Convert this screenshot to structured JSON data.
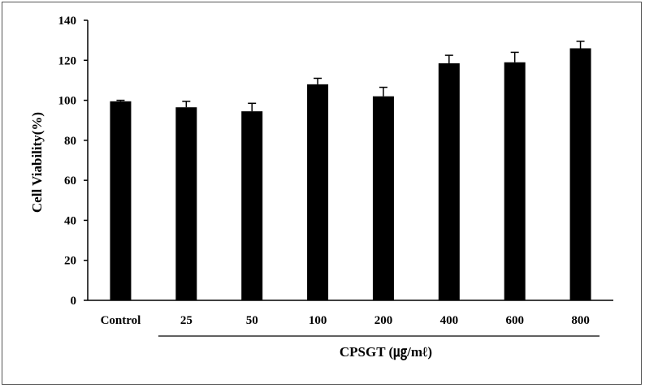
{
  "chart_data": {
    "type": "bar",
    "title": "",
    "xlabel": "",
    "ylabel": "Cell Viability(%)",
    "group_label": "CPSGT (㎍/mℓ)",
    "categories": [
      "Control",
      "25",
      "50",
      "100",
      "200",
      "400",
      "600",
      "800"
    ],
    "values": [
      99.5,
      96.5,
      94.5,
      108,
      102,
      118.5,
      119,
      126
    ],
    "errors": [
      0.5,
      3,
      4,
      3,
      4.5,
      4,
      5,
      3.5
    ],
    "ylim": [
      0,
      140
    ],
    "yticks": [
      "0",
      "20",
      "40",
      "60",
      "80",
      "100",
      "120",
      "140"
    ],
    "grid": false,
    "legend": "none",
    "bar_color": "#000000"
  }
}
